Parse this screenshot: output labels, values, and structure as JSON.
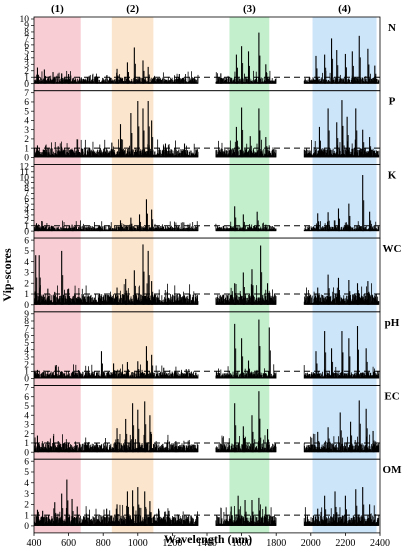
{
  "chart_data": {
    "type": "bar",
    "xlabel": "Wavelength (nm)",
    "ylabel": "Vip-scores",
    "xlim": [
      400,
      2400
    ],
    "x_ticks": [
      "400",
      "600",
      "800",
      "1000",
      "1200",
      "1400",
      "1600",
      "1800",
      "2000",
      "2200",
      "2400"
    ],
    "threshold": 1,
    "gaps_nm": [
      [
        1350,
        1450
      ],
      [
        1800,
        1960
      ]
    ],
    "regions": [
      {
        "label": "(1)",
        "start": 400,
        "end": 670,
        "color": "#f7c6cc"
      },
      {
        "label": "(2)",
        "start": 850,
        "end": 1090,
        "color": "#fbe0c4"
      },
      {
        "label": "(3)",
        "start": 1530,
        "end": 1760,
        "color": "#b8ecc4"
      },
      {
        "label": "(4)",
        "start": 2010,
        "end": 2380,
        "color": "#c4e0f8"
      }
    ],
    "panels": [
      {
        "label": "N",
        "ymax": 10,
        "y_ticks": [
          "0",
          "1",
          "2",
          "3",
          "4",
          "5",
          "6",
          "7",
          "8",
          "9",
          "10"
        ],
        "peaks": [
          [
            420,
            2.5
          ],
          [
            460,
            2.2
          ],
          [
            510,
            1.8
          ],
          [
            560,
            1.6
          ],
          [
            600,
            1.5
          ],
          [
            760,
            1.2
          ],
          [
            880,
            2.3
          ],
          [
            940,
            3.3
          ],
          [
            980,
            5.6
          ],
          [
            1030,
            3.6
          ],
          [
            1060,
            2.6
          ],
          [
            1240,
            1.5
          ],
          [
            1480,
            1.6
          ],
          [
            1570,
            4.5
          ],
          [
            1600,
            5.8
          ],
          [
            1640,
            5.0
          ],
          [
            1700,
            7.9
          ],
          [
            1740,
            3.0
          ],
          [
            2030,
            4.3
          ],
          [
            2080,
            4.5
          ],
          [
            2120,
            7.0
          ],
          [
            2150,
            5.2
          ],
          [
            2200,
            4.6
          ],
          [
            2240,
            5.0
          ],
          [
            2280,
            7.4
          ],
          [
            2330,
            5.4
          ],
          [
            2370,
            2.8
          ]
        ]
      },
      {
        "label": "P",
        "ymax": 7,
        "y_ticks": [
          "0",
          "1",
          "2",
          "3",
          "4",
          "5",
          "6",
          "7"
        ],
        "peaks": [
          [
            420,
            1.3
          ],
          [
            480,
            1.0
          ],
          [
            540,
            1.2
          ],
          [
            620,
            0.8
          ],
          [
            720,
            1.0
          ],
          [
            850,
            1.6
          ],
          [
            900,
            3.6
          ],
          [
            960,
            4.8
          ],
          [
            1000,
            6.1
          ],
          [
            1030,
            5.3
          ],
          [
            1060,
            6.1
          ],
          [
            1080,
            4.0
          ],
          [
            1160,
            1.5
          ],
          [
            1270,
            1.5
          ],
          [
            1570,
            3.3
          ],
          [
            1600,
            5.4
          ],
          [
            1650,
            2.3
          ],
          [
            1700,
            5.3
          ],
          [
            1740,
            2.2
          ],
          [
            2050,
            3.3
          ],
          [
            2100,
            5.3
          ],
          [
            2150,
            3.8
          ],
          [
            2180,
            6.2
          ],
          [
            2210,
            4.4
          ],
          [
            2260,
            5.3
          ],
          [
            2300,
            3.0
          ],
          [
            2340,
            2.2
          ]
        ]
      },
      {
        "label": "K",
        "ymax": 12,
        "y_ticks": [
          "0",
          "1",
          "2",
          "3",
          "4",
          "5",
          "6",
          "7",
          "8",
          "9",
          "10",
          "11",
          "12"
        ],
        "peaks": [
          [
            420,
            1.0
          ],
          [
            500,
            1.0
          ],
          [
            620,
            1.2
          ],
          [
            780,
            1.0
          ],
          [
            900,
            2.0
          ],
          [
            960,
            2.5
          ],
          [
            1010,
            3.1
          ],
          [
            1050,
            5.9
          ],
          [
            1080,
            4.0
          ],
          [
            1290,
            1.2
          ],
          [
            1560,
            4.6
          ],
          [
            1610,
            3.1
          ],
          [
            1690,
            3.6
          ],
          [
            1740,
            1.2
          ],
          [
            2040,
            3.3
          ],
          [
            2100,
            3.5
          ],
          [
            2160,
            4.2
          ],
          [
            2220,
            5.1
          ],
          [
            2300,
            10.4
          ],
          [
            2340,
            3.6
          ]
        ]
      },
      {
        "label": "WC",
        "ymax": 6,
        "y_ticks": [
          "0",
          "1",
          "2",
          "3",
          "4",
          "5",
          "6"
        ],
        "peaks": [
          [
            410,
            4.6
          ],
          [
            430,
            4.6
          ],
          [
            480,
            1.5
          ],
          [
            520,
            1.2
          ],
          [
            560,
            5.0
          ],
          [
            600,
            1.5
          ],
          [
            780,
            1.0
          ],
          [
            880,
            1.6
          ],
          [
            930,
            2.4
          ],
          [
            980,
            3.2
          ],
          [
            1030,
            5.6
          ],
          [
            1060,
            5.0
          ],
          [
            1080,
            2.2
          ],
          [
            1170,
            1.2
          ],
          [
            1560,
            2.0
          ],
          [
            1610,
            3.0
          ],
          [
            1660,
            3.3
          ],
          [
            1710,
            5.5
          ],
          [
            1750,
            2.0
          ],
          [
            2040,
            1.6
          ],
          [
            2100,
            2.8
          ],
          [
            2160,
            2.5
          ],
          [
            2220,
            2.3
          ],
          [
            2270,
            2.0
          ],
          [
            2330,
            2.2
          ]
        ]
      },
      {
        "label": "pH",
        "ymax": 9,
        "y_ticks": [
          "0",
          "1",
          "2",
          "3",
          "4",
          "5",
          "6",
          "7",
          "8",
          "9"
        ],
        "peaks": [
          [
            420,
            1.2
          ],
          [
            480,
            1.0
          ],
          [
            560,
            1.0
          ],
          [
            640,
            0.8
          ],
          [
            790,
            3.8
          ],
          [
            860,
            2.1
          ],
          [
            940,
            2.3
          ],
          [
            1000,
            2.4
          ],
          [
            1050,
            4.5
          ],
          [
            1080,
            3.3
          ],
          [
            1150,
            1.5
          ],
          [
            1280,
            1.3
          ],
          [
            1560,
            7.6
          ],
          [
            1600,
            5.6
          ],
          [
            1640,
            2.5
          ],
          [
            1700,
            8.2
          ],
          [
            1760,
            7.1
          ],
          [
            2030,
            3.8
          ],
          [
            2080,
            6.6
          ],
          [
            2120,
            4.2
          ],
          [
            2180,
            6.6
          ],
          [
            2220,
            5.6
          ],
          [
            2270,
            7.3
          ],
          [
            2320,
            4.2
          ]
        ]
      },
      {
        "label": "EC",
        "ymax": 7,
        "y_ticks": [
          "0",
          "1",
          "2",
          "3",
          "4",
          "5",
          "6",
          "7"
        ],
        "peaks": [
          [
            420,
            1.8
          ],
          [
            480,
            1.2
          ],
          [
            540,
            1.2
          ],
          [
            600,
            1.0
          ],
          [
            760,
            1.0
          ],
          [
            880,
            2.6
          ],
          [
            930,
            3.6
          ],
          [
            970,
            5.3
          ],
          [
            1000,
            4.6
          ],
          [
            1040,
            5.5
          ],
          [
            1070,
            4.0
          ],
          [
            1220,
            1.2
          ],
          [
            1560,
            5.3
          ],
          [
            1610,
            2.8
          ],
          [
            1660,
            4.0
          ],
          [
            1700,
            6.6
          ],
          [
            1750,
            2.5
          ],
          [
            2040,
            2.2
          ],
          [
            2100,
            2.7
          ],
          [
            2170,
            4.3
          ],
          [
            2230,
            3.3
          ],
          [
            2280,
            5.6
          ],
          [
            2320,
            4.7
          ],
          [
            2360,
            2.3
          ]
        ]
      },
      {
        "label": "OM",
        "ymax": 6,
        "y_ticks": [
          "0",
          "1",
          "2",
          "3",
          "4",
          "5",
          "6"
        ],
        "peaks": [
          [
            420,
            1.5
          ],
          [
            450,
            1.4
          ],
          [
            520,
            2.2
          ],
          [
            560,
            3.0
          ],
          [
            590,
            4.3
          ],
          [
            620,
            2.5
          ],
          [
            650,
            1.8
          ],
          [
            720,
            1.0
          ],
          [
            820,
            1.6
          ],
          [
            880,
            2.0
          ],
          [
            940,
            3.2
          ],
          [
            970,
            3.3
          ],
          [
            1000,
            3.6
          ],
          [
            1040,
            3.2
          ],
          [
            1070,
            2.3
          ],
          [
            1120,
            1.6
          ],
          [
            1180,
            1.4
          ],
          [
            1260,
            1.0
          ],
          [
            1540,
            1.8
          ],
          [
            1580,
            2.8
          ],
          [
            1620,
            2.4
          ],
          [
            1660,
            2.4
          ],
          [
            1700,
            2.6
          ],
          [
            1740,
            1.8
          ],
          [
            2040,
            1.6
          ],
          [
            2080,
            2.8
          ],
          [
            2140,
            3.2
          ],
          [
            2200,
            2.8
          ],
          [
            2260,
            3.4
          ],
          [
            2300,
            3.6
          ],
          [
            2340,
            2.0
          ]
        ]
      }
    ]
  }
}
